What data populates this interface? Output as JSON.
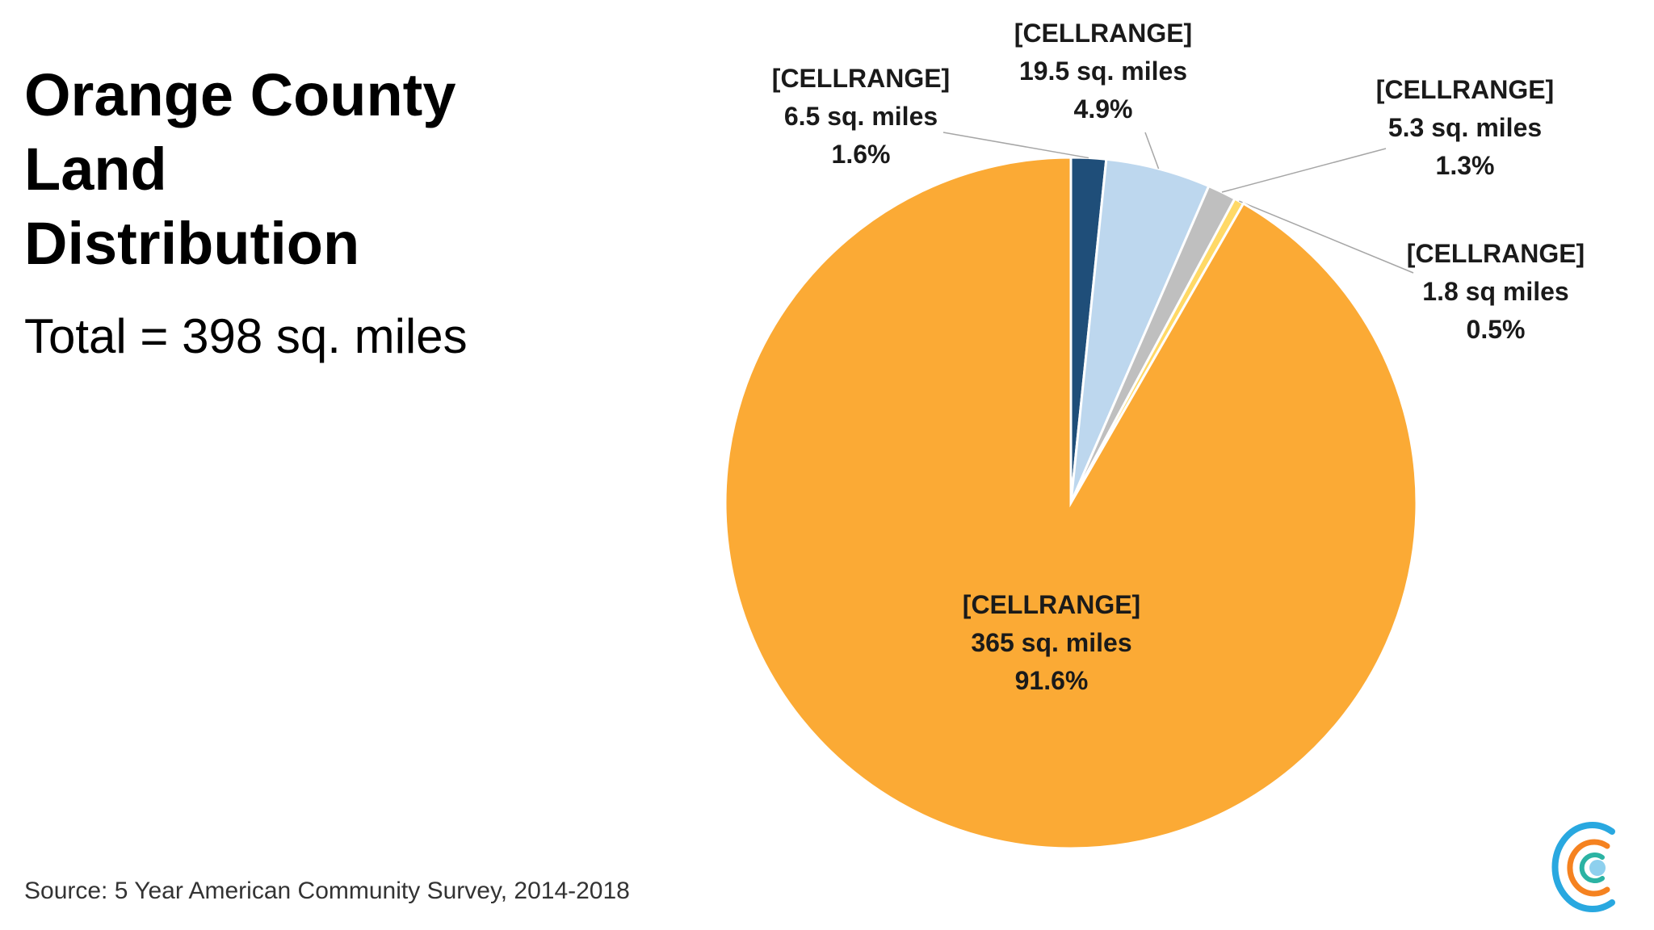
{
  "title": "Orange County Land Distribution",
  "subtitle": "Total = 398 sq. miles",
  "source": "Source: 5 Year American Community Survey, 2014-2018",
  "chart_data": {
    "type": "pie",
    "title": "Orange County Land Distribution",
    "start": "12 o'clock",
    "direction": "clockwise",
    "slices": [
      {
        "name": "[CELLRANGE]",
        "value": 6.5,
        "value_label": "6.5 sq. miles",
        "percent": 1.6,
        "percent_label": "1.6%",
        "color": "#1f4e79"
      },
      {
        "name": "[CELLRANGE]",
        "value": 19.5,
        "value_label": "19.5 sq. miles",
        "percent": 4.9,
        "percent_label": "4.9%",
        "color": "#bdd7ee"
      },
      {
        "name": "[CELLRANGE]",
        "value": 5.3,
        "value_label": "5.3 sq. miles",
        "percent": 1.3,
        "percent_label": "1.3%",
        "color": "#bfbfbf"
      },
      {
        "name": "[CELLRANGE]",
        "value": 1.8,
        "value_label": "1.8 sq miles",
        "percent": 0.5,
        "percent_label": "0.5%",
        "color": "#ffd966"
      },
      {
        "name": "[CELLRANGE]",
        "value": 365,
        "value_label": "365 sq. miles",
        "percent": 91.6,
        "percent_label": "91.6%",
        "color": "#fbaa35"
      }
    ],
    "leader_lines": true
  },
  "logo": {
    "colors": [
      "#29a8e0",
      "#f58220",
      "#2bb3a3",
      "#8ed0ee"
    ]
  }
}
